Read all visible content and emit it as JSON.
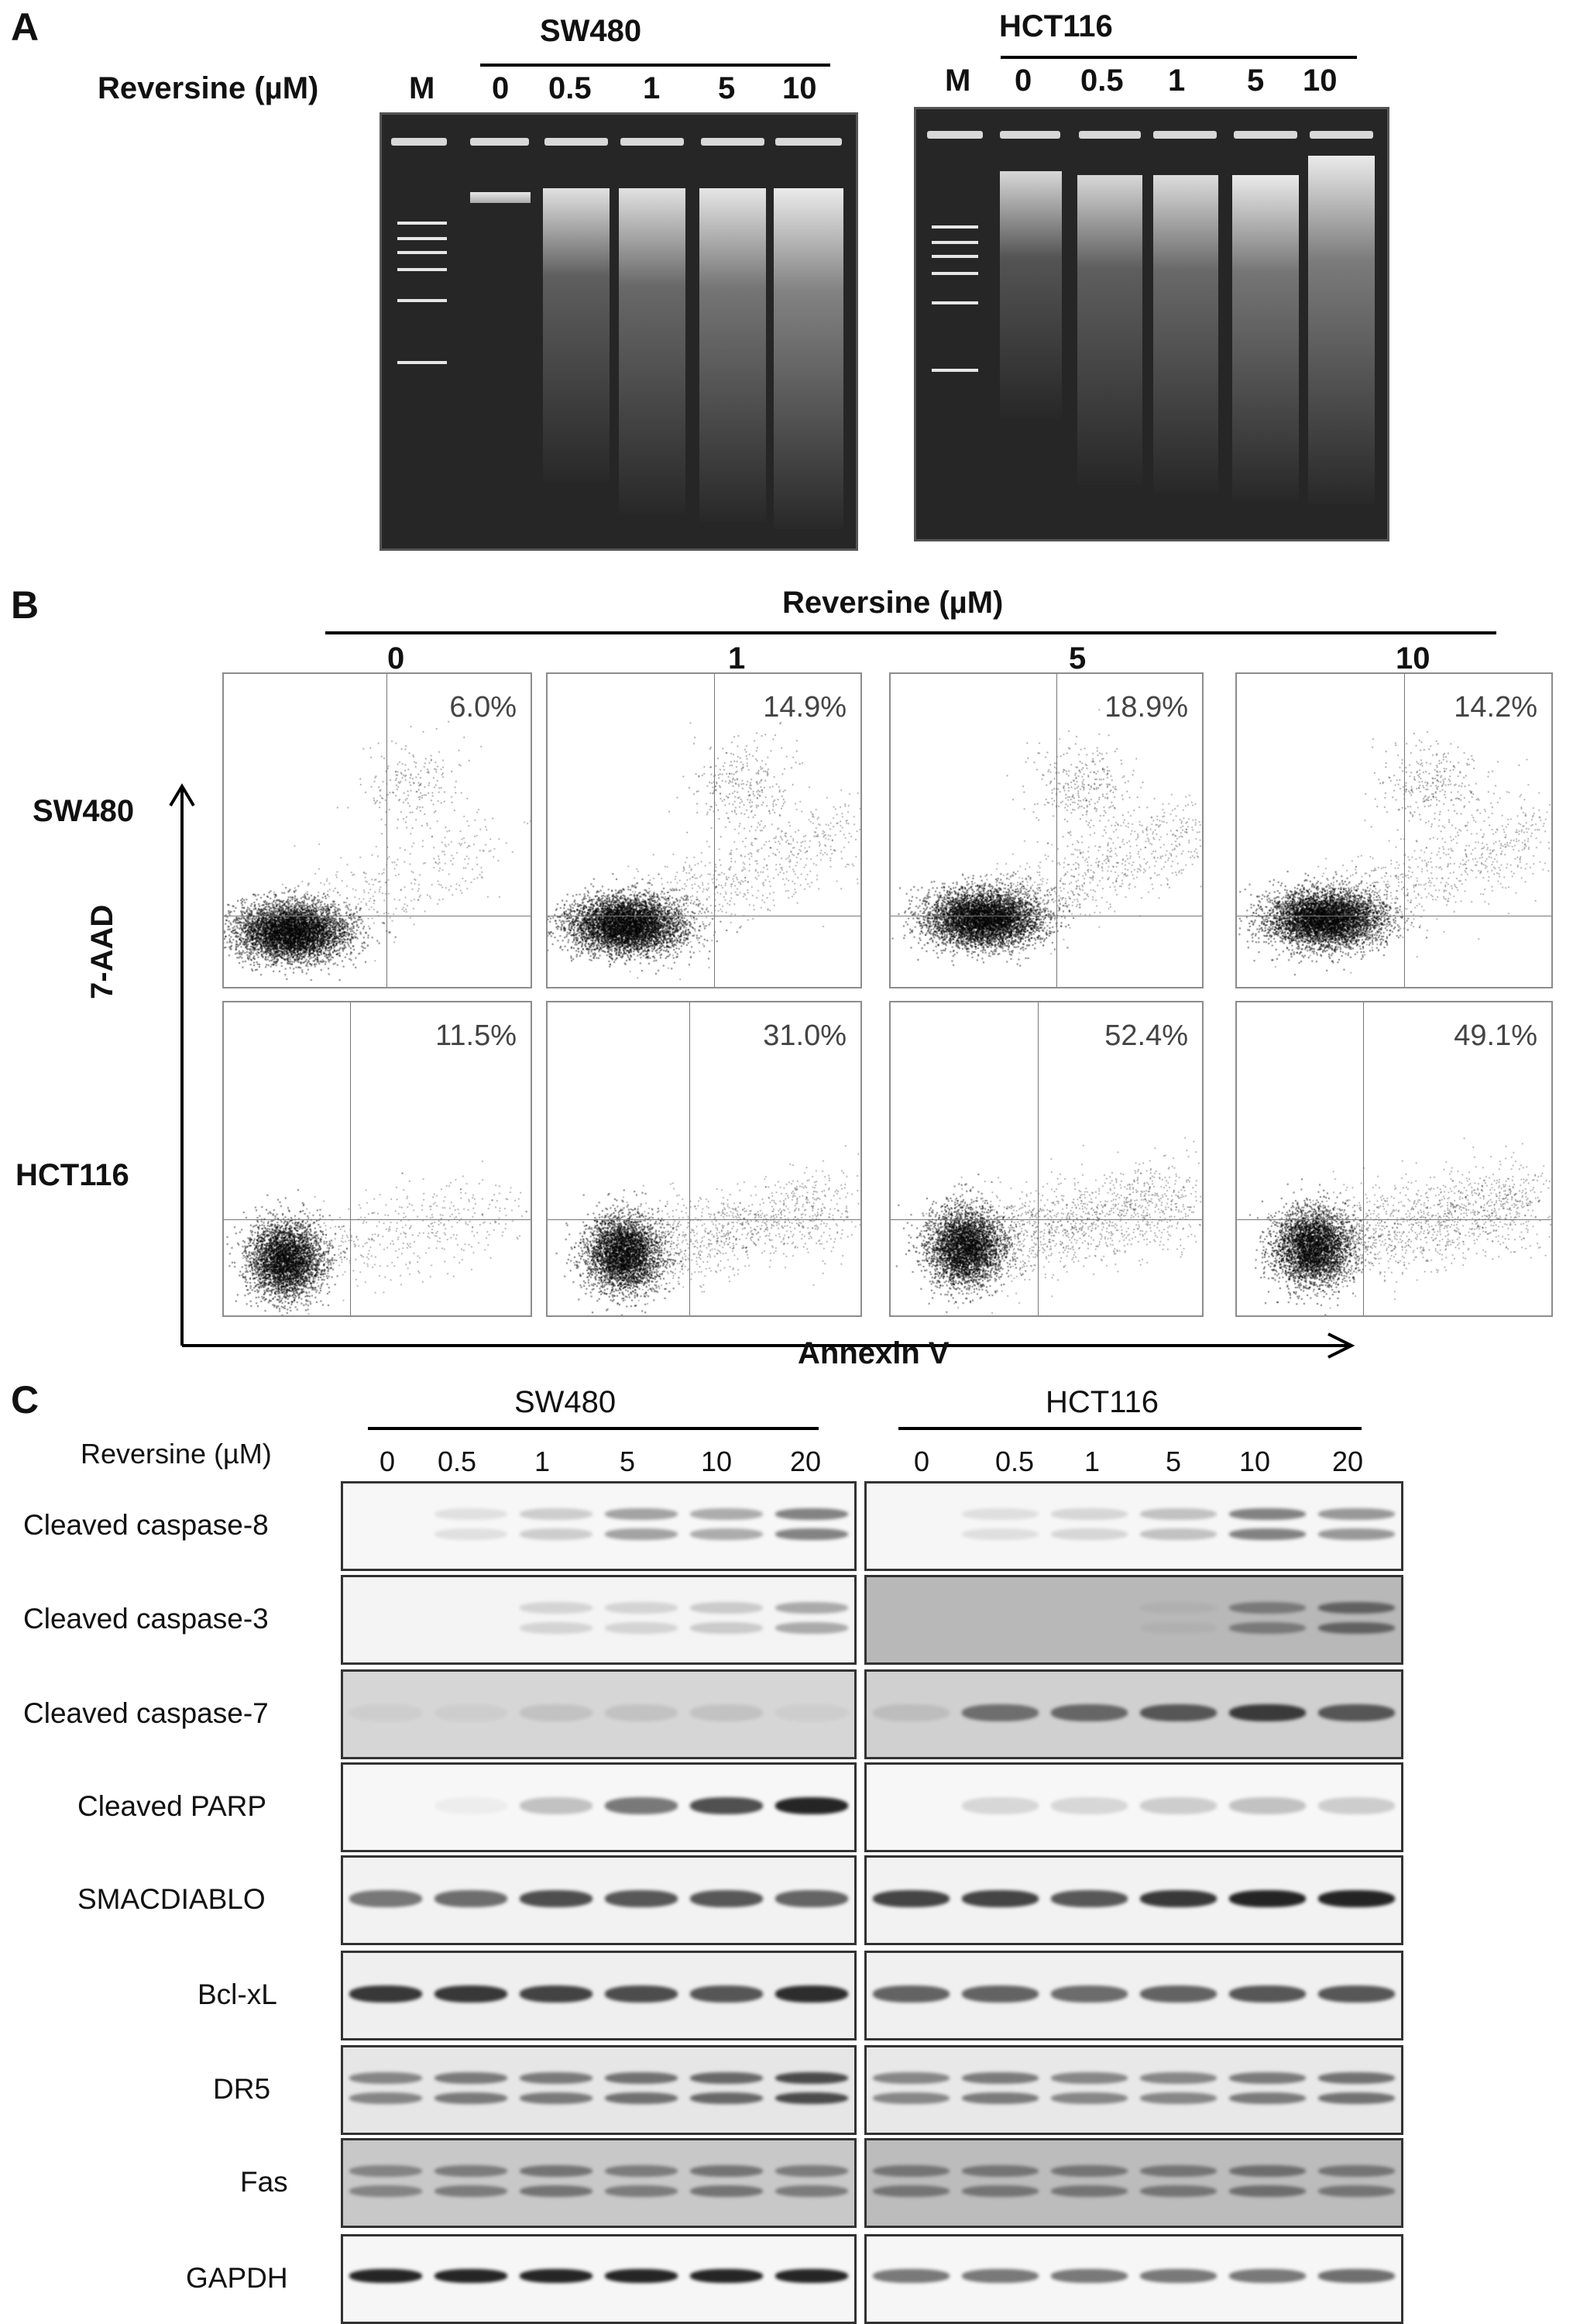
{
  "panels": {
    "a": "A",
    "b": "B",
    "c": "C"
  },
  "panel_a": {
    "reversine_label": "Reversine (µM)",
    "groups": [
      {
        "name": "SW480",
        "lanes": [
          "M",
          "0",
          "0.5",
          "1",
          "5",
          "10"
        ]
      },
      {
        "name": "HCT116",
        "lanes": [
          "M",
          "0",
          "0.5",
          "1",
          "5",
          "10"
        ]
      }
    ]
  },
  "panel_b": {
    "reversine_label": "Reversine (µM)",
    "concentrations": [
      "0",
      "1",
      "5",
      "10"
    ],
    "rows": [
      {
        "name": "SW480",
        "percentages": [
          "6.0%",
          "14.9%",
          "18.9%",
          "14.2%"
        ]
      },
      {
        "name": "HCT116",
        "percentages": [
          "11.5%",
          "31.0%",
          "52.4%",
          "49.1%"
        ]
      }
    ],
    "y_axis_label": "7-AAD",
    "x_axis_label": "Annexin V"
  },
  "panel_c": {
    "reversine_label": "Reversine  (µM)",
    "groups": [
      {
        "name": "SW480",
        "lanes": [
          "0",
          "0.5",
          "1",
          "5",
          "10",
          "20"
        ]
      },
      {
        "name": "HCT116",
        "lanes": [
          "0",
          "0.5",
          "1",
          "5",
          "10",
          "20"
        ]
      }
    ],
    "proteins": [
      "Cleaved caspase-8",
      "Cleaved caspase-3",
      "Cleaved caspase-7",
      "Cleaved  PARP",
      "SMACDIABLO",
      "Bcl-xL",
      "DR5",
      "Fas",
      "GAPDH"
    ]
  }
}
